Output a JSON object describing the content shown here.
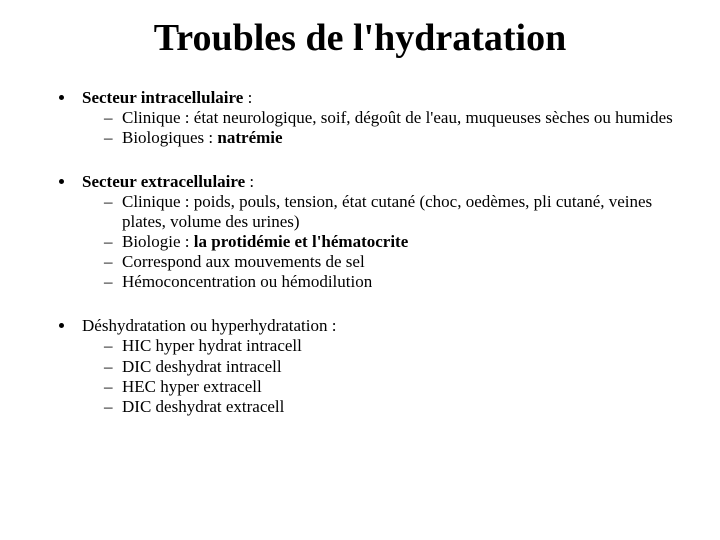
{
  "title": "Troubles de l'hydratation",
  "sections": [
    {
      "lead_bold": "Secteur intracellulaire",
      "lead_after": " :",
      "subs": [
        {
          "pre": "Clinique : état neurologique, soif, dégoût de l'eau, muqueuses sèches ou humides",
          "bold": "",
          "post": ""
        },
        {
          "pre": "Biologiques : ",
          "bold": "natrémie",
          "post": ""
        }
      ]
    },
    {
      "lead_bold": "Secteur extracellulaire",
      "lead_after": " :",
      "subs": [
        {
          "pre": "Clinique : poids, pouls, tension, état cutané (choc, oedèmes, pli cutané, veines plates, volume des urines)",
          "bold": "",
          "post": ""
        },
        {
          "pre": "Biologie : ",
          "bold": "la protidémie et l'hématocrite",
          "post": ""
        },
        {
          "pre": "Correspond aux mouvements de sel",
          "bold": "",
          "post": ""
        },
        {
          "pre": "Hémoconcentration ou hémodilution",
          "bold": "",
          "post": ""
        }
      ]
    },
    {
      "lead_bold": "",
      "lead_after": "Déshydratation ou hyperhydratation :",
      "subs": [
        {
          "pre": "HIC hyper hydrat intracell",
          "bold": "",
          "post": ""
        },
        {
          "pre": "DIC deshydrat intracell",
          "bold": "",
          "post": ""
        },
        {
          "pre": "HEC hyper extracell",
          "bold": "",
          "post": ""
        },
        {
          "pre": "DIC deshydrat extracell",
          "bold": "",
          "post": ""
        }
      ]
    }
  ]
}
